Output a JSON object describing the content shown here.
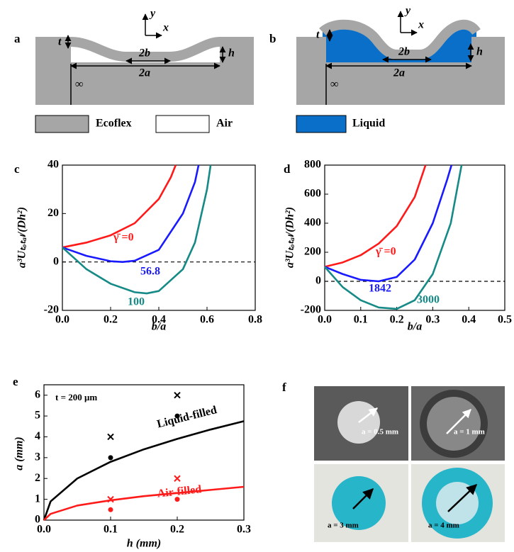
{
  "schematics": {
    "a": {
      "label": "a",
      "t": "t",
      "h": "h",
      "b2": "2b",
      "a2": "2a",
      "inf": "∞",
      "y": "y",
      "x": "x"
    },
    "b": {
      "label": "b",
      "t": "t",
      "h": "h",
      "b2": "2b",
      "a2": "2a",
      "inf": "∞",
      "y": "y",
      "x": "x"
    },
    "legend": {
      "ecoflex": "Ecoflex",
      "air": "Air",
      "liquid": "Liquid"
    }
  },
  "chart_data": [
    {
      "type": "line",
      "panel_label": "c",
      "xlabel": "b/a",
      "ylabel": "a³Uₜₒₜₐₗ/(Dh²)",
      "xlim": [
        0,
        0.8
      ],
      "ylim": [
        -20,
        40
      ],
      "xticks": [
        {
          "value": 0,
          "label": "0.0"
        },
        0.2,
        0.4,
        0.6,
        0.8
      ],
      "yticks": [
        -20,
        0,
        20,
        40
      ],
      "reference_line": 0,
      "series": [
        {
          "name": "γ̄ =0",
          "color": "#ff1a1a",
          "x": [
            0,
            0.1,
            0.2,
            0.3,
            0.4,
            0.45,
            0.47
          ],
          "values": [
            6,
            8,
            11,
            16,
            26,
            35,
            40
          ]
        },
        {
          "name": "56.8",
          "color": "#1a1aff",
          "x": [
            0,
            0.1,
            0.2,
            0.25,
            0.3,
            0.4,
            0.5,
            0.55,
            0.565
          ],
          "values": [
            6,
            2.5,
            0.3,
            0,
            0.5,
            5,
            20,
            33,
            40
          ]
        },
        {
          "name": "100",
          "color": "#168a86",
          "x": [
            0,
            0.1,
            0.2,
            0.3,
            0.35,
            0.4,
            0.5,
            0.55,
            0.6,
            0.615
          ],
          "values": [
            6,
            -3,
            -9,
            -12.5,
            -13,
            -12,
            -3,
            8,
            30,
            40
          ]
        }
      ]
    },
    {
      "type": "line",
      "panel_label": "d",
      "xlabel": "b/a",
      "ylabel": "a³Uₜₒₜₐₗ/(Dh²)",
      "xlim": [
        0,
        0.5
      ],
      "ylim": [
        -200,
        800
      ],
      "xticks": [
        {
          "value": 0,
          "label": "0.0"
        },
        0.1,
        0.2,
        0.3,
        0.4,
        0.5
      ],
      "yticks": [
        -200,
        0,
        200,
        400,
        600,
        800
      ],
      "reference_line": 0,
      "series": [
        {
          "name": "γ̄ =0",
          "color": "#ff1a1a",
          "x": [
            0,
            0.05,
            0.1,
            0.15,
            0.2,
            0.25,
            0.28
          ],
          "values": [
            100,
            130,
            180,
            260,
            380,
            580,
            800
          ]
        },
        {
          "name": "1842",
          "color": "#1a1aff",
          "x": [
            0,
            0.05,
            0.1,
            0.15,
            0.2,
            0.25,
            0.3,
            0.34,
            0.352
          ],
          "values": [
            100,
            50,
            10,
            0,
            30,
            150,
            400,
            700,
            800
          ]
        },
        {
          "name": "3000",
          "color": "#168a86",
          "x": [
            0,
            0.05,
            0.1,
            0.15,
            0.2,
            0.25,
            0.3,
            0.35,
            0.38
          ],
          "values": [
            100,
            -40,
            -130,
            -180,
            -190,
            -130,
            50,
            400,
            800
          ]
        }
      ]
    },
    {
      "type": "line",
      "panel_label": "e",
      "xlabel": "h (mm)",
      "ylabel": "a (mm)",
      "annotation": "t = 200 μm",
      "xlim": [
        0,
        0.3
      ],
      "ylim": [
        0,
        6.5
      ],
      "xticks": [
        {
          "value": 0,
          "label": "0.0"
        },
        0.1,
        0.2,
        0.3
      ],
      "yticks": [
        0,
        1,
        2,
        3,
        4,
        5,
        6
      ],
      "series": [
        {
          "name": "Liquid-filled",
          "color": "#000000",
          "x": [
            0,
            0.01,
            0.05,
            0.1,
            0.15,
            0.2,
            0.25,
            0.3
          ],
          "values": [
            0,
            0.9,
            2.0,
            2.8,
            3.4,
            3.9,
            4.35,
            4.75
          ]
        },
        {
          "name": "Air-filled",
          "color": "#ff1a1a",
          "x": [
            0,
            0.01,
            0.05,
            0.1,
            0.15,
            0.2,
            0.25,
            0.3
          ],
          "values": [
            0,
            0.3,
            0.7,
            0.95,
            1.15,
            1.3,
            1.45,
            1.6
          ]
        }
      ],
      "points": [
        {
          "marker": "x",
          "color": "#000000",
          "x": [
            0.1,
            0.2
          ],
          "values": [
            4,
            6
          ]
        },
        {
          "marker": "o",
          "color": "#000000",
          "x": [
            0.1,
            0.2
          ],
          "values": [
            3,
            5
          ]
        },
        {
          "marker": "x",
          "color": "#ff1a1a",
          "x": [
            0.1,
            0.2
          ],
          "values": [
            1,
            2
          ]
        },
        {
          "marker": "o",
          "color": "#ff1a1a",
          "x": [
            0.1,
            0.2
          ],
          "values": [
            0.5,
            1
          ]
        }
      ]
    }
  ],
  "photos": {
    "label": "f",
    "items": [
      "a = 0.5 mm",
      "a = 1 mm",
      "a = 3 mm",
      "a = 4 mm"
    ]
  }
}
